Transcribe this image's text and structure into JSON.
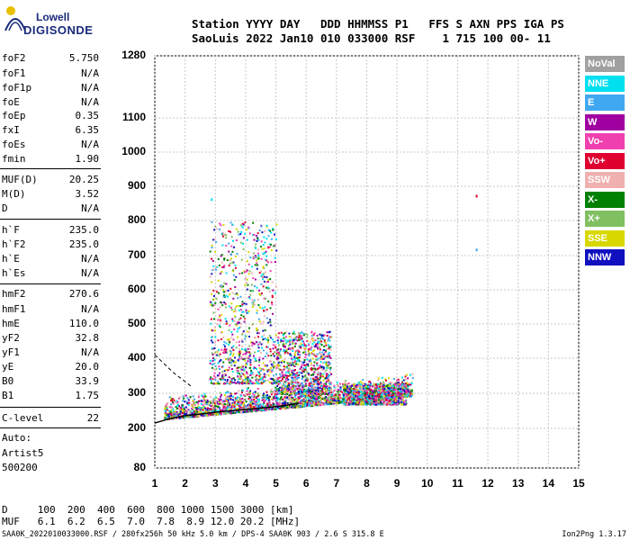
{
  "logo": {
    "top": "Lowell",
    "bottom": "DIGISONDE"
  },
  "header": {
    "line1": "Station YYYY DAY   DDD HHMMSS P1   FFS S AXN PPS IGA PS",
    "line2": "SaoLuis 2022 Jan10 010 033000 RSF    1 715 100 00- 11"
  },
  "params": [
    {
      "name": "foF2",
      "value": "5.750"
    },
    {
      "name": "foF1",
      "value": "N/A"
    },
    {
      "name": "foF1p",
      "value": "N/A"
    },
    {
      "name": "foE",
      "value": "N/A"
    },
    {
      "name": "foEp",
      "value": "0.35"
    },
    {
      "name": "fxI",
      "value": "6.35"
    },
    {
      "name": "foEs",
      "value": "N/A"
    },
    {
      "name": "fmin",
      "value": "1.90"
    },
    {
      "name": "MUF(D)",
      "value": "20.25"
    },
    {
      "name": "M(D)",
      "value": "3.52"
    },
    {
      "name": "D",
      "value": "N/A"
    },
    {
      "name": "h`F",
      "value": "235.0"
    },
    {
      "name": "h`F2",
      "value": "235.0"
    },
    {
      "name": "h`E",
      "value": "N/A"
    },
    {
      "name": "h`Es",
      "value": "N/A"
    },
    {
      "name": "hmF2",
      "value": "270.6"
    },
    {
      "name": "hmF1",
      "value": "N/A"
    },
    {
      "name": "hmE",
      "value": "110.0"
    },
    {
      "name": "yF2",
      "value": "32.8"
    },
    {
      "name": "yF1",
      "value": "N/A"
    },
    {
      "name": "yE",
      "value": "20.0"
    },
    {
      "name": "B0",
      "value": "33.9"
    },
    {
      "name": "B1",
      "value": "1.75"
    },
    {
      "name": "C-level",
      "value": "22"
    }
  ],
  "auto": {
    "line1": "Auto:",
    "line2": "Artist5",
    "line3": "500200"
  },
  "legend": [
    {
      "label": "NoVal",
      "color": "#a0a0a0"
    },
    {
      "label": "NNE",
      "color": "#00e0f0"
    },
    {
      "label": "E",
      "color": "#40a8f0"
    },
    {
      "label": "W",
      "color": "#a000a0"
    },
    {
      "label": "Vo-",
      "color": "#f040b0"
    },
    {
      "label": "Vo+",
      "color": "#e00030"
    },
    {
      "label": "SSW",
      "color": "#f0b0b0"
    },
    {
      "label": "X-",
      "color": "#008000"
    },
    {
      "label": "X+",
      "color": "#80c060"
    },
    {
      "label": "SSE",
      "color": "#d8d800"
    },
    {
      "label": "NNW",
      "color": "#1010c0"
    }
  ],
  "muf_table": {
    "d_row": "D     100  200  400  600  800 1000 1500 3000 [km]",
    "muf_row": "MUF   6.1  6.2  6.5  7.0  7.8  8.9 12.0 20.2 [MHz]"
  },
  "footer": {
    "left": "SAA0K_2022010033000.RSF / 280fx256h 50 kHz 5.0 km / DPS-4 SAA0K 903 / 2.6 S 315.8 E",
    "right": "Ion2Png 1.3.17"
  },
  "chart_data": {
    "type": "scatter",
    "xlabel": "",
    "ylabel": "",
    "xlim": [
      1,
      15
    ],
    "ylim": [
      80,
      1280
    ],
    "y_scale": "log-like ionogram height scale",
    "x_ticks": [
      1,
      2,
      3,
      4,
      5,
      6,
      7,
      8,
      9,
      10,
      11,
      12,
      13,
      14,
      15
    ],
    "y_ticks": [
      80,
      200,
      300,
      400,
      500,
      600,
      700,
      800,
      900,
      1000,
      1100,
      1280
    ],
    "grid": true,
    "trace_profile": [
      {
        "x": 1.0,
        "y": 215
      },
      {
        "x": 1.5,
        "y": 228
      },
      {
        "x": 2.0,
        "y": 236
      },
      {
        "x": 3.0,
        "y": 246
      },
      {
        "x": 4.0,
        "y": 254
      },
      {
        "x": 5.0,
        "y": 262
      },
      {
        "x": 5.5,
        "y": 268
      },
      {
        "x": 5.75,
        "y": 272
      }
    ],
    "echo_clusters": [
      {
        "x_min": 1.3,
        "x_max": 9.5,
        "y_min": 230,
        "y_max": 330,
        "density": "high"
      },
      {
        "x_min": 2.8,
        "x_max": 5.0,
        "y_min": 330,
        "y_max": 800,
        "density": "medium"
      },
      {
        "x_min": 5.0,
        "x_max": 6.8,
        "y_min": 300,
        "y_max": 480,
        "density": "medium"
      },
      {
        "x_min": 7.2,
        "x_max": 9.3,
        "y_min": 270,
        "y_max": 330,
        "density": "medium"
      }
    ],
    "isolated_points": [
      {
        "x": 11.6,
        "y": 875,
        "color": "#e00030"
      },
      {
        "x": 11.6,
        "y": 720,
        "color": "#40a8f0"
      },
      {
        "x": 2.85,
        "y": 865,
        "color": "#00e0f0"
      }
    ]
  }
}
